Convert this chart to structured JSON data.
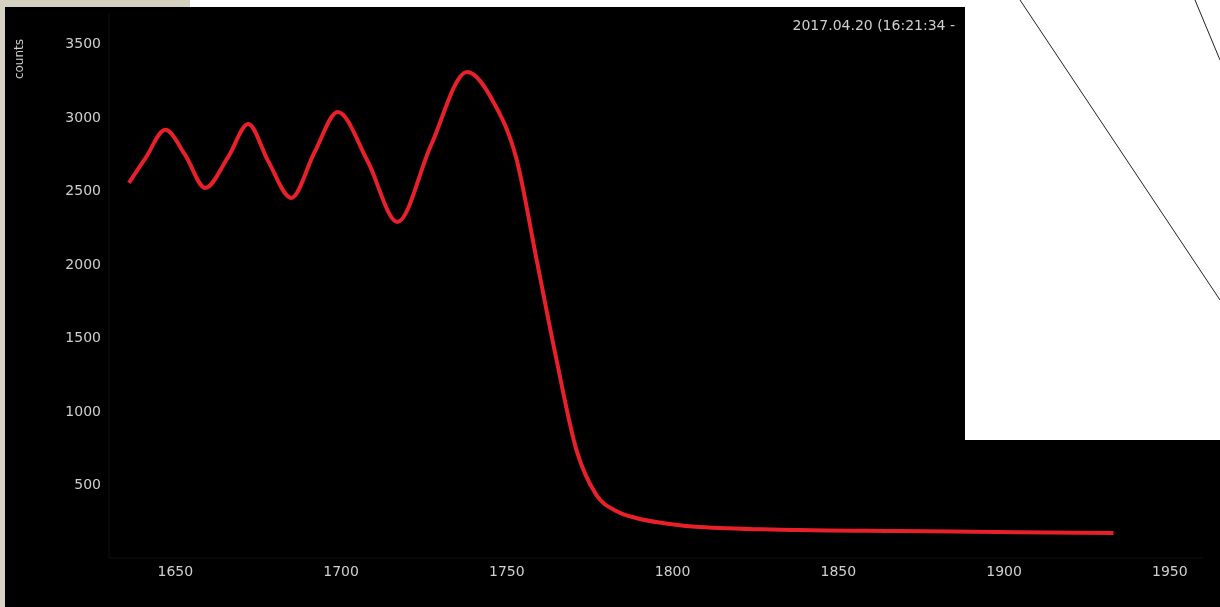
{
  "chart_data": {
    "type": "line",
    "title": "2017.04.20 (16:21:34 -",
    "ylabel": "counts",
    "x": [
      1636,
      1641,
      1647,
      1653,
      1659,
      1666,
      1672,
      1678,
      1685,
      1692,
      1699,
      1708,
      1717,
      1727,
      1738,
      1746,
      1753,
      1759,
      1765,
      1771,
      1777,
      1783,
      1789,
      1798,
      1808,
      1838,
      1868,
      1898,
      1933
    ],
    "series": [
      {
        "color": "#e8202a",
        "values": [
          2551,
          2720,
          2912,
          2740,
          2517,
          2730,
          2952,
          2700,
          2449,
          2760,
          3034,
          2700,
          2286,
          2800,
          3306,
          3100,
          2707,
          2027,
          1347,
          735,
          429,
          320,
          272,
          235,
          211,
          190,
          183,
          177,
          170
        ]
      }
    ],
    "xlim": [
      1630,
      1960
    ],
    "xticks": [
      1650,
      1700,
      1750,
      1800,
      1850,
      1900,
      1950
    ],
    "ylim": [
      0,
      3700
    ],
    "yticks": [
      500,
      1000,
      1500,
      2000,
      2500,
      3000,
      3500
    ],
    "grid": false,
    "legend": false,
    "marker": "none",
    "line_style": "solid"
  }
}
